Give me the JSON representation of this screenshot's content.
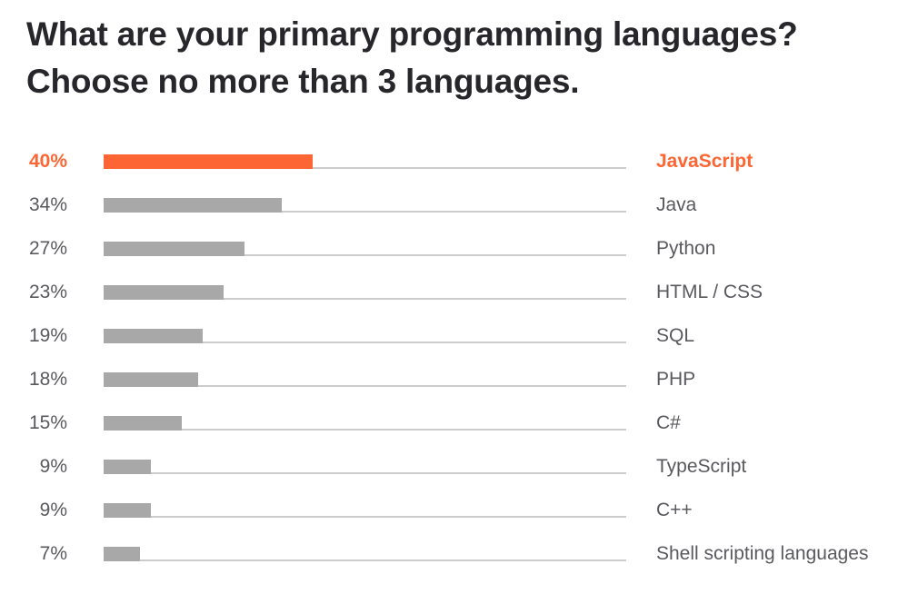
{
  "title_line1": "What are your primary programming languages?",
  "title_line2": "Choose no more than 3 languages.",
  "colors": {
    "highlight": "#fd6634",
    "bar": "#a8a8a8",
    "track": "#cccccc",
    "text": "#59595e",
    "title": "#26262b"
  },
  "rows": [
    {
      "pct": "40%",
      "lang": "JavaScript"
    },
    {
      "pct": "34%",
      "lang": "Java"
    },
    {
      "pct": "27%",
      "lang": "Python"
    },
    {
      "pct": "23%",
      "lang": "HTML / CSS"
    },
    {
      "pct": "19%",
      "lang": "SQL"
    },
    {
      "pct": "18%",
      "lang": "PHP"
    },
    {
      "pct": "15%",
      "lang": "C#"
    },
    {
      "pct": "9%",
      "lang": "TypeScript"
    },
    {
      "pct": "9%",
      "lang": "C++"
    },
    {
      "pct": "7%",
      "lang": "Shell scripting languages"
    }
  ],
  "chart_data": {
    "type": "bar",
    "orientation": "horizontal",
    "title": "What are your primary programming languages? Choose no more than 3 languages.",
    "categories": [
      "JavaScript",
      "Java",
      "Python",
      "HTML / CSS",
      "SQL",
      "PHP",
      "C#",
      "TypeScript",
      "C++",
      "Shell scripting languages"
    ],
    "values": [
      40,
      34,
      27,
      23,
      19,
      18,
      15,
      9,
      9,
      7
    ],
    "unit": "%",
    "highlighted": "JavaScript",
    "xlim": [
      0,
      100
    ],
    "grid": false,
    "legend": null
  }
}
